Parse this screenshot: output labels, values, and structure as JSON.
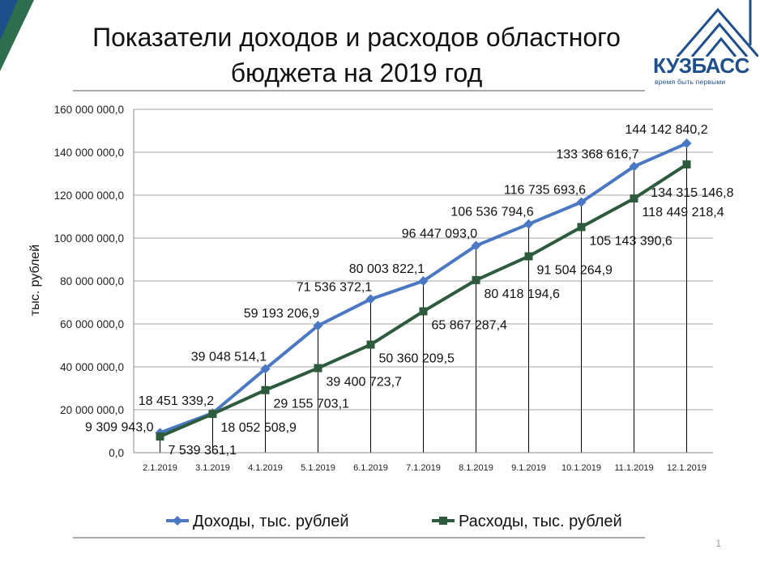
{
  "title_line1": "Показатели доходов и расходов областного",
  "title_line2": "бюджета на 2019 год",
  "logo": {
    "text": "КУЗБАСС",
    "tagline": "время быть первыми"
  },
  "page_number": "1",
  "colors": {
    "income": "#4a78c2",
    "expense": "#2e5a3e",
    "brand": "#1f4e8c",
    "corner": "#2e6e4c"
  },
  "chart_data": {
    "type": "line",
    "ylabel": "тыс. рублей",
    "ylim": [
      0,
      160000000
    ],
    "yticks": [
      "0,0",
      "20 000 000,0",
      "40 000 000,0",
      "60 000 000,0",
      "80 000 000,0",
      "100 000 000,0",
      "120 000 000,0",
      "140 000 000,0",
      "160 000 000,0"
    ],
    "categories": [
      "2.1.2019",
      "3.1.2019",
      "4.1.2019",
      "5.1.2019",
      "6.1.2019",
      "7.1.2019",
      "8.1.2019",
      "9.1.2019",
      "10.1.2019",
      "11.1.2019",
      "12.1.2019"
    ],
    "legend_position": "bottom",
    "series": [
      {
        "name": "Доходы, тыс. рублей",
        "color": "#4a78c2",
        "marker": "diamond",
        "values": [
          9309943.0,
          18451339.2,
          39048514.1,
          59193206.9,
          71536372.1,
          80003822.1,
          96447093.0,
          106536794.6,
          116735693.6,
          133368616.7,
          144142840.2
        ],
        "labels": [
          "9 309 943,0",
          "18 451 339,2",
          "39 048 514,1",
          "59 193 206,9",
          "71 536 372,1",
          "80 003 822,1",
          "96 447 093,0",
          "106 536 794,6",
          "116 735 693,6",
          "133 368 616,7",
          "144 142 840,2"
        ]
      },
      {
        "name": "Расходы, тыс. рублей",
        "color": "#2e5a3e",
        "marker": "square",
        "values": [
          7539361.1,
          18052508.9,
          29155703.1,
          39400723.7,
          50360209.5,
          65867287.4,
          80418194.6,
          91504264.9,
          105143390.6,
          118449218.4,
          134315146.8
        ],
        "labels": [
          "7 539 361,1",
          "18 052 508,9",
          "29 155 703,1",
          "39 400 723,7",
          "50 360 209,5",
          "65 867 287,4",
          "80 418 194,6",
          "91 504 264,9",
          "105 143 390,6",
          "118 449 218,4",
          "134 315 146,8"
        ]
      }
    ]
  }
}
